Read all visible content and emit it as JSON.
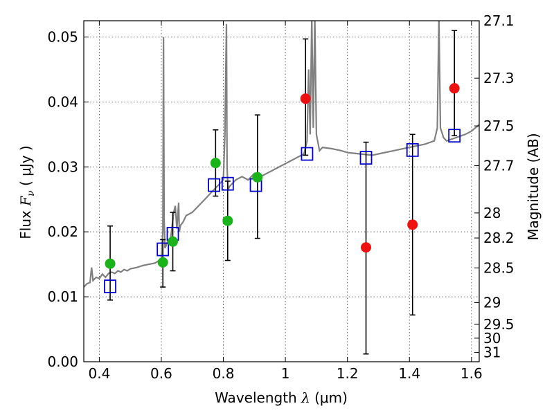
{
  "chart_data": {
    "type": "scatter",
    "xlabel": "Wavelength  λ (μm)",
    "ylabel": "Flux  F_ν  ( μJy )",
    "y2label": "Magnitude (AB)",
    "xlim": [
      0.35,
      1.625
    ],
    "ylim": [
      0.0,
      0.0525
    ],
    "grid": true,
    "x_ticks": [
      "0.4",
      "0.6",
      "0.8",
      "1",
      "1.2",
      "1.4",
      "1.6"
    ],
    "x_tick_values": [
      0.4,
      0.6,
      0.8,
      1.0,
      1.2,
      1.4,
      1.6
    ],
    "y_ticks": [
      "0.00",
      "0.01",
      "0.02",
      "0.03",
      "0.04",
      "0.05"
    ],
    "y_tick_values": [
      0.0,
      0.01,
      0.02,
      0.03,
      0.04,
      0.05
    ],
    "y2_ticks": [
      "27.1",
      "27.3",
      "27.5",
      "27.7",
      "28",
      "28.2",
      "28.5",
      "29",
      "29.5",
      "30",
      "31"
    ],
    "colors": {
      "spectrum": "#808080",
      "model": "#0000cc",
      "detection": "#1ab31a",
      "upper": "#ee1111",
      "errorbar": "#000000"
    },
    "spectrum": {
      "name": "",
      "x": [
        0.35,
        0.36,
        0.37,
        0.375,
        0.38,
        0.39,
        0.4,
        0.41,
        0.42,
        0.43,
        0.44,
        0.45,
        0.46,
        0.47,
        0.48,
        0.49,
        0.5,
        0.52,
        0.54,
        0.56,
        0.58,
        0.59,
        0.6,
        0.605,
        0.607,
        0.609,
        0.612,
        0.62,
        0.63,
        0.64,
        0.645,
        0.65,
        0.656,
        0.658,
        0.662,
        0.67,
        0.68,
        0.7,
        0.72,
        0.74,
        0.76,
        0.78,
        0.8,
        0.805,
        0.81,
        0.812,
        0.815,
        0.82,
        0.83,
        0.84,
        0.86,
        0.88,
        0.9,
        0.92,
        0.94,
        0.96,
        0.98,
        1.0,
        1.02,
        1.04,
        1.06,
        1.07,
        1.075,
        1.08,
        1.085,
        1.09,
        1.095,
        1.1,
        1.11,
        1.12,
        1.15,
        1.18,
        1.2,
        1.24,
        1.28,
        1.3,
        1.35,
        1.4,
        1.45,
        1.48,
        1.49,
        1.495,
        1.5,
        1.51,
        1.52,
        1.55,
        1.58,
        1.6,
        1.625
      ],
      "y": [
        0.0115,
        0.012,
        0.0122,
        0.0145,
        0.0125,
        0.013,
        0.0128,
        0.0135,
        0.013,
        0.0136,
        0.0138,
        0.0136,
        0.014,
        0.0138,
        0.0142,
        0.014,
        0.0143,
        0.0145,
        0.0148,
        0.015,
        0.0152,
        0.0155,
        0.0158,
        0.02,
        0.05,
        0.022,
        0.0175,
        0.0185,
        0.019,
        0.023,
        0.024,
        0.0205,
        0.0245,
        0.02,
        0.021,
        0.0215,
        0.0225,
        0.023,
        0.024,
        0.025,
        0.026,
        0.027,
        0.028,
        0.035,
        0.052,
        0.03,
        0.0265,
        0.027,
        0.0275,
        0.028,
        0.0285,
        0.028,
        0.029,
        0.0285,
        0.029,
        0.0295,
        0.03,
        0.0305,
        0.031,
        0.0315,
        0.032,
        0.034,
        0.045,
        0.035,
        0.053,
        0.036,
        0.053,
        0.035,
        0.0325,
        0.033,
        0.0328,
        0.0325,
        0.0322,
        0.032,
        0.0318,
        0.032,
        0.0325,
        0.033,
        0.0335,
        0.034,
        0.036,
        0.053,
        0.036,
        0.0345,
        0.034,
        0.0345,
        0.035,
        0.0355,
        0.0365
      ]
    },
    "model_photometry": {
      "name": "",
      "x": [
        0.435,
        0.605,
        0.637,
        0.77,
        0.814,
        0.905,
        1.07,
        1.26,
        1.41,
        1.545
      ],
      "y": [
        0.0116,
        0.0173,
        0.0197,
        0.0272,
        0.0274,
        0.0272,
        0.032,
        0.0314,
        0.0326,
        0.0348
      ]
    },
    "detections": {
      "name": "",
      "x": [
        0.435,
        0.605,
        0.637,
        0.775,
        0.814,
        0.91
      ],
      "y": [
        0.0151,
        0.0153,
        0.0185,
        0.0306,
        0.0217,
        0.0284
      ],
      "err_low": [
        0.0095,
        0.0115,
        0.014,
        0.0255,
        0.0156,
        0.019
      ],
      "err_high": [
        0.0209,
        0.0188,
        0.023,
        0.0357,
        0.0278,
        0.038
      ]
    },
    "nondetections": {
      "name": "",
      "x": [
        1.065,
        1.26,
        1.41,
        1.545
      ],
      "y": [
        0.0405,
        0.0176,
        0.0211,
        0.0421
      ],
      "err_low": [
        0.0318,
        0.0012,
        0.0072,
        0.0348
      ],
      "err_high": [
        0.0497,
        0.0338,
        0.035,
        0.051
      ]
    },
    "magnitude_ticks": [
      27.1,
      27.3,
      27.5,
      27.7,
      28.0,
      28.2,
      28.5,
      29.0,
      29.5,
      30.0,
      31.0
    ]
  }
}
